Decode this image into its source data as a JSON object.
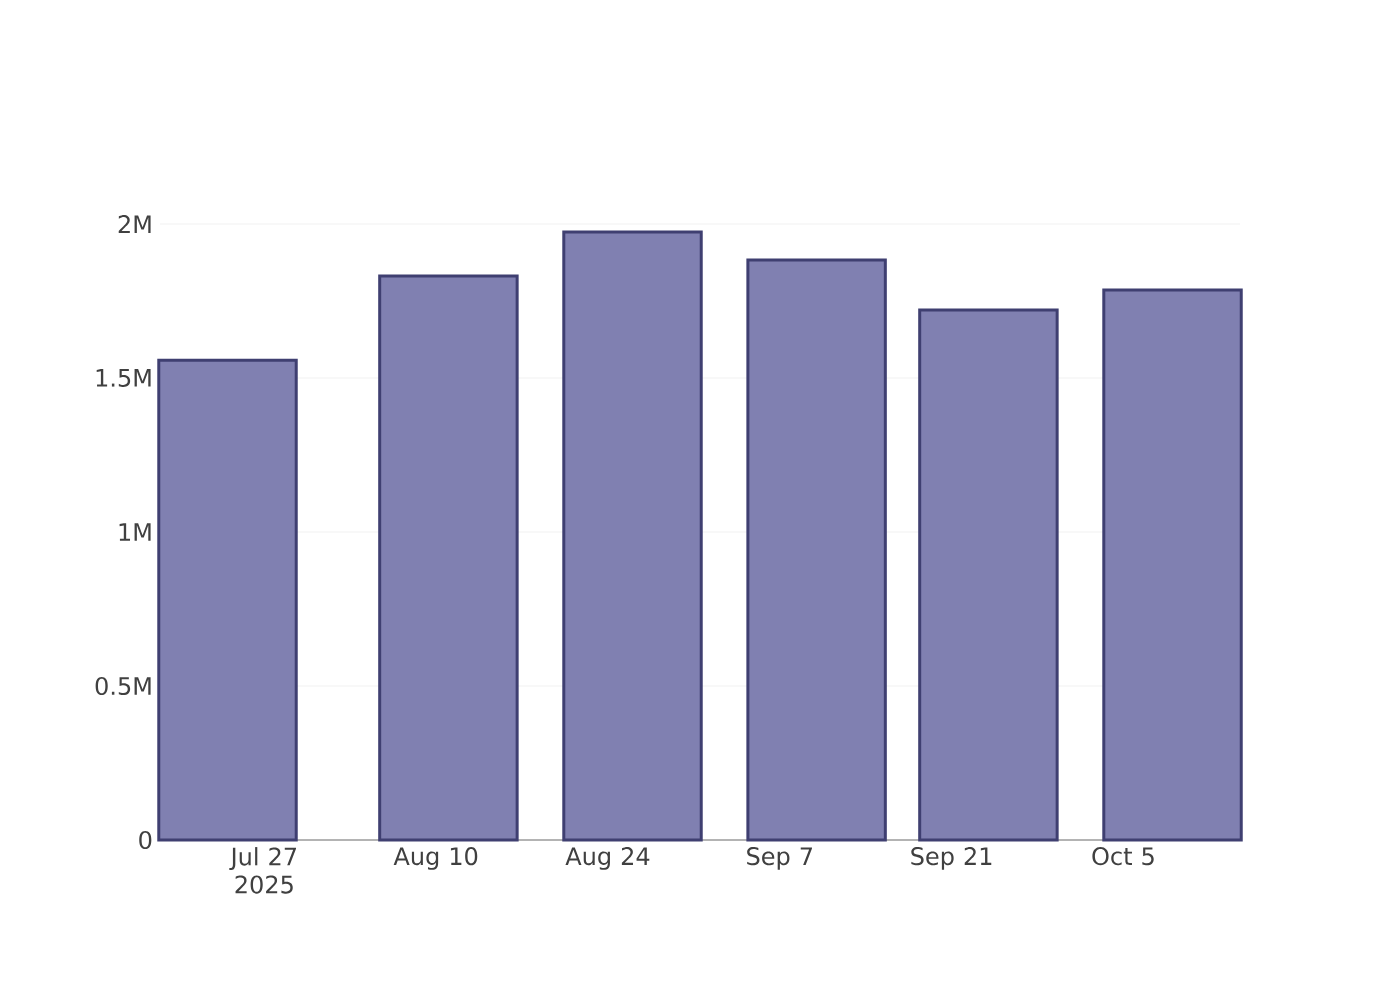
{
  "chart_data": {
    "type": "bar",
    "x": [
      "2025-07-24",
      "2025-08-11",
      "2025-08-26",
      "2025-09-10",
      "2025-09-24",
      "2025-10-09"
    ],
    "values": [
      1558000,
      1831000,
      1974000,
      1883000,
      1721000,
      1786000
    ],
    "color": "#8080b1",
    "xlim": [
      "2025-07-18T12:00",
      "2025-10-14T12:00"
    ],
    "xticks": [
      {
        "value": "2025-07-27",
        "label": "Jul 27 2025"
      },
      {
        "value": "2025-08-10",
        "label": "Aug 10"
      },
      {
        "value": "2025-08-24",
        "label": "Aug 24"
      },
      {
        "value": "2025-09-07",
        "label": "Sep 7"
      },
      {
        "value": "2025-09-21",
        "label": "Sep 21"
      },
      {
        "value": "2025-10-05",
        "label": "Oct 5"
      }
    ],
    "ylim": [
      0,
      2000000
    ],
    "yticks": [
      0,
      {
        "value": 500000,
        "label": "0.5M"
      },
      {
        "value": 1000000,
        "label": "1M"
      },
      {
        "value": 1500000,
        "label": "1.5M"
      },
      {
        "value": 2000000,
        "label": "2M"
      }
    ],
    "grid": "y"
  }
}
